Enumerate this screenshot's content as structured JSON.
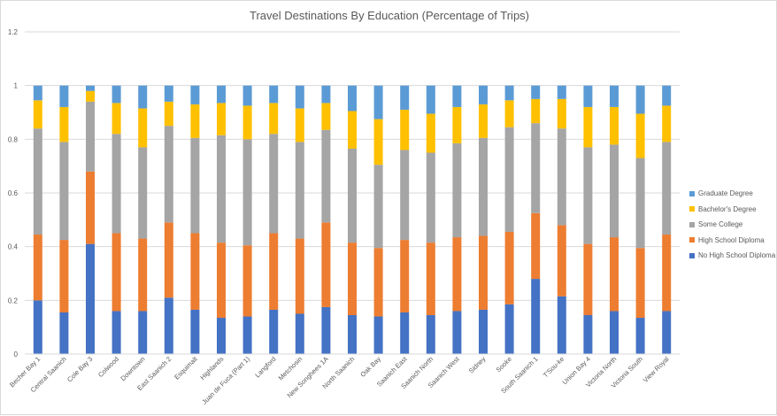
{
  "chart_data": {
    "type": "bar",
    "stacked": true,
    "title": "Travel Destinations By Education (Percentage of Trips)",
    "xlabel": "",
    "ylabel": "",
    "ylim": [
      0,
      1.2
    ],
    "yticks": [
      0,
      0.2,
      0.4,
      0.6,
      0.8,
      1,
      1.2
    ],
    "grid": true,
    "legend": "right",
    "categories": [
      "Becher Bay 1",
      "Central Saanich",
      "Cole Bay 3",
      "Colwood",
      "Downtown",
      "East Saanich 2",
      "Esquimalt",
      "Highlands",
      "Juan de Fuca (Part 1)",
      "Langford",
      "Metchosin",
      "New Songhees 1A",
      "North Saanich",
      "Oak Bay",
      "Saanich East",
      "Saanich North",
      "Saanich West",
      "Sidney",
      "Sooke",
      "South Saanich 1",
      "T'Sou-ke",
      "Union Bay 4",
      "Victoria North",
      "Victoria South",
      "View Royal"
    ],
    "series": [
      {
        "name": "No High School Diploma",
        "color": "#4472C4",
        "values": [
          0.2,
          0.155,
          0.41,
          0.16,
          0.16,
          0.21,
          0.165,
          0.135,
          0.14,
          0.165,
          0.15,
          0.175,
          0.145,
          0.14,
          0.155,
          0.145,
          0.16,
          0.165,
          0.185,
          0.28,
          0.215,
          0.145,
          0.16,
          0.135,
          0.16
        ]
      },
      {
        "name": "High School Diploma",
        "color": "#ED7D31",
        "values": [
          0.245,
          0.27,
          0.27,
          0.29,
          0.27,
          0.28,
          0.285,
          0.28,
          0.265,
          0.285,
          0.28,
          0.315,
          0.27,
          0.255,
          0.27,
          0.27,
          0.275,
          0.275,
          0.27,
          0.245,
          0.265,
          0.265,
          0.275,
          0.26,
          0.285
        ]
      },
      {
        "name": "Some College",
        "color": "#A5A5A5",
        "values": [
          0.395,
          0.365,
          0.26,
          0.37,
          0.34,
          0.36,
          0.355,
          0.4,
          0.395,
          0.37,
          0.36,
          0.345,
          0.35,
          0.31,
          0.335,
          0.335,
          0.35,
          0.365,
          0.39,
          0.335,
          0.36,
          0.36,
          0.345,
          0.335,
          0.345
        ]
      },
      {
        "name": "Bachelor's Degree",
        "color": "#FFC000",
        "values": [
          0.105,
          0.13,
          0.04,
          0.115,
          0.145,
          0.09,
          0.125,
          0.12,
          0.125,
          0.115,
          0.125,
          0.1,
          0.14,
          0.17,
          0.15,
          0.145,
          0.135,
          0.125,
          0.1,
          0.09,
          0.11,
          0.15,
          0.14,
          0.165,
          0.135
        ]
      },
      {
        "name": "Graduate Degree",
        "color": "#5B9BD5",
        "values": [
          0.055,
          0.08,
          0.02,
          0.065,
          0.085,
          0.06,
          0.07,
          0.065,
          0.075,
          0.065,
          0.085,
          0.065,
          0.095,
          0.125,
          0.09,
          0.105,
          0.08,
          0.07,
          0.055,
          0.05,
          0.05,
          0.08,
          0.08,
          0.105,
          0.075
        ]
      }
    ]
  }
}
